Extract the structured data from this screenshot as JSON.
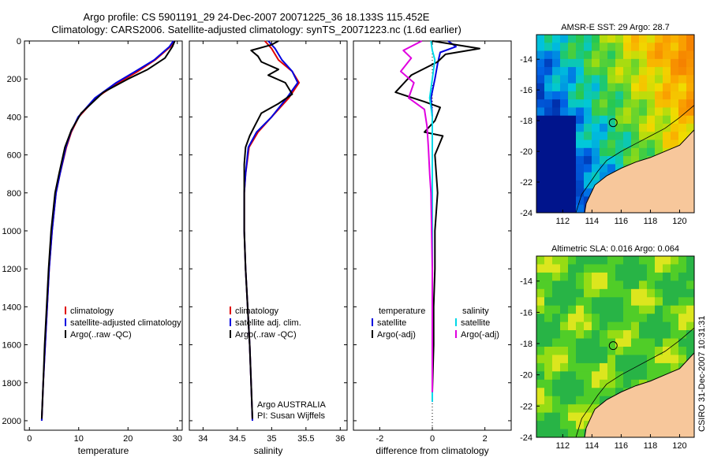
{
  "titles": {
    "line1": "Argo profile: CS 5901191_29 24-Dec-2007 20071225_36 18.133S 115.452E",
    "line2": "Climatology: CARS2006. Satellite-adjusted climatology: synTS_20071223.nc (1.6d earlier)"
  },
  "footer": "CSIRO 31-Dec-2007 10:31:31",
  "colors": {
    "climatology": "#e00000",
    "satellite": "#0000e0",
    "argo": "#000000",
    "salinity_satellite": "#00d8e8",
    "salinity_argo": "#e000e0",
    "land": "#f7c79b"
  },
  "chart_data": [
    {
      "type": "line",
      "xlabel": "temperature",
      "ylabel": "",
      "xlim": [
        -1,
        31
      ],
      "ylim": [
        2050,
        0
      ],
      "xticks": [
        "0",
        "10",
        "20",
        "30"
      ],
      "yticks": [
        "0",
        "200",
        "400",
        "600",
        "800",
        "1000",
        "1200",
        "1400",
        "1600",
        "1800",
        "2000"
      ],
      "legend_position": "lower-right",
      "series": [
        {
          "name": "climatology",
          "color": "#e00000",
          "x": [
            29.3,
            28.6,
            25.5,
            22,
            18,
            13.5,
            10,
            8.5,
            7.5,
            6.2,
            5.4,
            4.6,
            4.0,
            3.6,
            3.2,
            2.8,
            2.5
          ],
          "y": [
            0,
            30,
            100,
            160,
            220,
            300,
            400,
            480,
            560,
            700,
            800,
            1000,
            1200,
            1400,
            1600,
            1800,
            2000
          ]
        },
        {
          "name": "satellite-adjusted climatology",
          "color": "#0000e0",
          "x": [
            29.2,
            28.4,
            25.3,
            21.5,
            17.6,
            13.3,
            9.9,
            8.4,
            7.4,
            6.2,
            5.4,
            4.6,
            4.0,
            3.6,
            3.2,
            2.8,
            2.5
          ],
          "y": [
            0,
            30,
            100,
            160,
            220,
            300,
            400,
            480,
            560,
            700,
            800,
            1000,
            1200,
            1400,
            1600,
            1800,
            2000
          ]
        },
        {
          "name": "Argo(..raw -QC)",
          "color": "#000000",
          "x": [
            29.5,
            29.0,
            27.5,
            24,
            20,
            15,
            10.5,
            8.5,
            7.2,
            6.0,
            5.2,
            4.4,
            3.9,
            3.5,
            3.1,
            2.8,
            2.5
          ],
          "y": [
            0,
            30,
            90,
            150,
            200,
            270,
            380,
            470,
            560,
            700,
            800,
            1000,
            1200,
            1400,
            1600,
            1800,
            1990
          ]
        }
      ]
    },
    {
      "type": "line",
      "xlabel": "salinity",
      "ylabel": "",
      "xlim": [
        33.8,
        36.1
      ],
      "ylim": [
        2050,
        0
      ],
      "xticks": [
        "34",
        "34.5",
        "35",
        "35.5",
        "36"
      ],
      "legend_position": "lower-right",
      "series": [
        {
          "name": "climatology",
          "color": "#e00000",
          "x": [
            34.9,
            35.0,
            35.1,
            35.3,
            35.4,
            35.25,
            35.0,
            34.8,
            34.67,
            34.62,
            34.6,
            34.6,
            34.62,
            34.65,
            34.68,
            34.7,
            34.72
          ],
          "y": [
            0,
            40,
            100,
            160,
            220,
            300,
            400,
            480,
            560,
            700,
            800,
            1000,
            1200,
            1400,
            1600,
            1800,
            2000
          ]
        },
        {
          "name": "satellite adj. clim.",
          "color": "#0000e0",
          "x": [
            34.95,
            35.05,
            35.15,
            35.3,
            35.38,
            35.22,
            35.0,
            34.78,
            34.66,
            34.62,
            34.6,
            34.6,
            34.62,
            34.65,
            34.68,
            34.7,
            34.72
          ],
          "y": [
            0,
            40,
            100,
            160,
            220,
            300,
            400,
            480,
            560,
            700,
            800,
            1000,
            1200,
            1400,
            1600,
            1800,
            2000
          ]
        },
        {
          "name": "Argo(..raw -QC)",
          "color": "#000000",
          "x": [
            35.1,
            35.0,
            34.7,
            34.8,
            34.85,
            35.1,
            34.95,
            35.2,
            35.3,
            35.1,
            34.85,
            34.75,
            34.68,
            34.62,
            34.6,
            34.6,
            34.6,
            34.62,
            34.65,
            34.68,
            34.7,
            34.72
          ],
          "y": [
            0,
            20,
            50,
            80,
            110,
            150,
            180,
            220,
            280,
            330,
            380,
            450,
            500,
            560,
            650,
            800,
            1000,
            1200,
            1400,
            1600,
            1800,
            1990
          ]
        }
      ],
      "annotations": [
        "Argo AUSTRALIA",
        "PI: Susan Wijffels"
      ]
    },
    {
      "type": "line",
      "xlabel": "difference from climatology",
      "ylabel": "",
      "xlim": [
        -3,
        3
      ],
      "ylim": [
        2050,
        0
      ],
      "xticks": [
        "-2",
        "0",
        "2"
      ],
      "legend_position": "lower-right",
      "legend_headers": [
        "temperature",
        "salinity"
      ],
      "series": [
        {
          "name": "satellite",
          "group": "temperature",
          "color": "#0000e0",
          "x": [
            0.6,
            0.9,
            0.3,
            0.2,
            0.1,
            -0.05,
            0.0,
            0.0,
            0.0,
            0.0,
            0.0,
            0.0
          ],
          "y": [
            0,
            30,
            60,
            120,
            200,
            300,
            400,
            600,
            800,
            1200,
            1600,
            1900
          ]
        },
        {
          "name": "Argo(-adj)",
          "group": "temperature",
          "color": "#000000",
          "x": [
            0.0,
            1.8,
            0.5,
            0.2,
            -0.8,
            -1.4,
            -0.3,
            0.3,
            0.1,
            -0.3,
            0.4,
            0.1,
            0.2,
            0.1,
            0.1,
            0.05,
            0.05,
            0.0
          ],
          "y": [
            0,
            40,
            70,
            110,
            180,
            270,
            320,
            350,
            420,
            480,
            500,
            600,
            800,
            1000,
            1200,
            1400,
            1600,
            1850
          ]
        },
        {
          "name": "satellite",
          "group": "salinity",
          "color": "#00d8e8",
          "x": [
            -0.05,
            0.0,
            0.1,
            0.0,
            -0.1,
            0.0,
            0.0,
            0.0,
            0.0,
            0.0,
            0.0
          ],
          "y": [
            0,
            50,
            100,
            200,
            300,
            400,
            600,
            800,
            1200,
            1600,
            1900
          ]
        },
        {
          "name": "Argo(-adj)",
          "group": "salinity",
          "color": "#e000e0",
          "x": [
            -0.4,
            -1.1,
            -0.8,
            -1.2,
            -0.7,
            -0.9,
            -0.3,
            -0.2,
            -0.15,
            -0.1,
            -0.05,
            0.0,
            0.0,
            0.0
          ],
          "y": [
            0,
            50,
            90,
            160,
            220,
            300,
            360,
            450,
            560,
            700,
            800,
            1200,
            1600,
            1850
          ]
        }
      ]
    },
    {
      "type": "heatmap",
      "title": "AMSR-E SST: 29 Argo: 28.7",
      "xlim": [
        110.2,
        121
      ],
      "ylim": [
        -24,
        -12.4
      ],
      "xticks": [
        "112",
        "114",
        "116",
        "118",
        "120"
      ],
      "yticks": [
        "-14",
        "-16",
        "-18",
        "-20",
        "-22",
        "-24"
      ],
      "marker": {
        "lon": 115.452,
        "lat": -18.133
      }
    },
    {
      "type": "heatmap",
      "title": "Altimetric SLA: 0.016 Argo: 0.064",
      "xlim": [
        110.2,
        121
      ],
      "ylim": [
        -24,
        -12.4
      ],
      "xticks": [
        "112",
        "114",
        "116",
        "118",
        "120"
      ],
      "yticks": [
        "-14",
        "-16",
        "-18",
        "-20",
        "-22",
        "-24"
      ],
      "marker": {
        "lon": 115.452,
        "lat": -18.133
      }
    }
  ]
}
